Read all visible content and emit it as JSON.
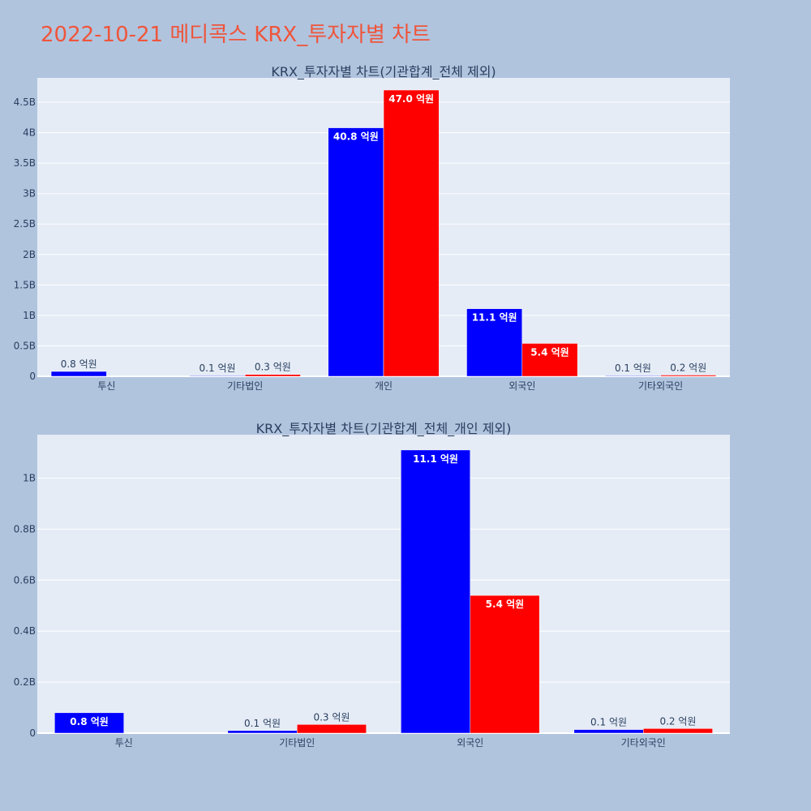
{
  "page_title": "2022-10-21 메디콕스 KRX_투자자별 차트",
  "colors": {
    "background": "#b0c4de",
    "plot_bg": "#e5ecf6",
    "title": "#ef553b",
    "series_a": "#0000ff",
    "series_b": "#ff0000",
    "text": "#2a3f5f"
  },
  "chart_data": [
    {
      "type": "bar",
      "title": "KRX_투자자별 차트(기관합계_전체 제외)",
      "categories": [
        "투신",
        "기타법인",
        "개인",
        "외국인",
        "기타외국인"
      ],
      "ylim": [
        0,
        4.9
      ],
      "yticks": [
        0,
        0.5,
        1,
        1.5,
        2,
        2.5,
        3,
        3.5,
        4,
        4.5
      ],
      "ytick_labels": [
        "0",
        "0.5B",
        "1B",
        "1.5B",
        "2B",
        "2.5B",
        "3B",
        "3.5B",
        "4B",
        "4.5B"
      ],
      "grid": true,
      "series": [
        {
          "color": "#0000ff",
          "values": [
            0.08,
            0.01,
            4.08,
            1.11,
            0.01
          ],
          "labels": [
            "0.8 억원",
            "0.1 억원",
            "40.8 억원",
            "11.1 억원",
            "0.1 억원"
          ]
        },
        {
          "color": "#ff0000",
          "values": [
            0,
            0.03,
            4.7,
            0.54,
            0.02
          ],
          "labels": [
            "",
            "0.3 억원",
            "47.0 억원",
            "5.4 억원",
            "0.2 억원"
          ]
        }
      ]
    },
    {
      "type": "bar",
      "title": "KRX_투자자별 차트(기관합계_전체_개인 제외)",
      "categories": [
        "투신",
        "기타법인",
        "외국인",
        "기타외국인"
      ],
      "ylim": [
        0,
        1.17
      ],
      "yticks": [
        0,
        0.2,
        0.4,
        0.6,
        0.8,
        1
      ],
      "ytick_labels": [
        "0",
        "0.2B",
        "0.4B",
        "0.6B",
        "0.8B",
        "1B"
      ],
      "grid": true,
      "series": [
        {
          "color": "#0000ff",
          "values": [
            0.08,
            0.01,
            1.11,
            0.014
          ],
          "labels": [
            "0.8 억원",
            "0.1 억원",
            "11.1 억원",
            "0.1 억원"
          ]
        },
        {
          "color": "#ff0000",
          "values": [
            0,
            0.034,
            0.54,
            0.018
          ],
          "labels": [
            "",
            "0.3 억원",
            "5.4 억원",
            "0.2 억원"
          ]
        }
      ]
    }
  ]
}
